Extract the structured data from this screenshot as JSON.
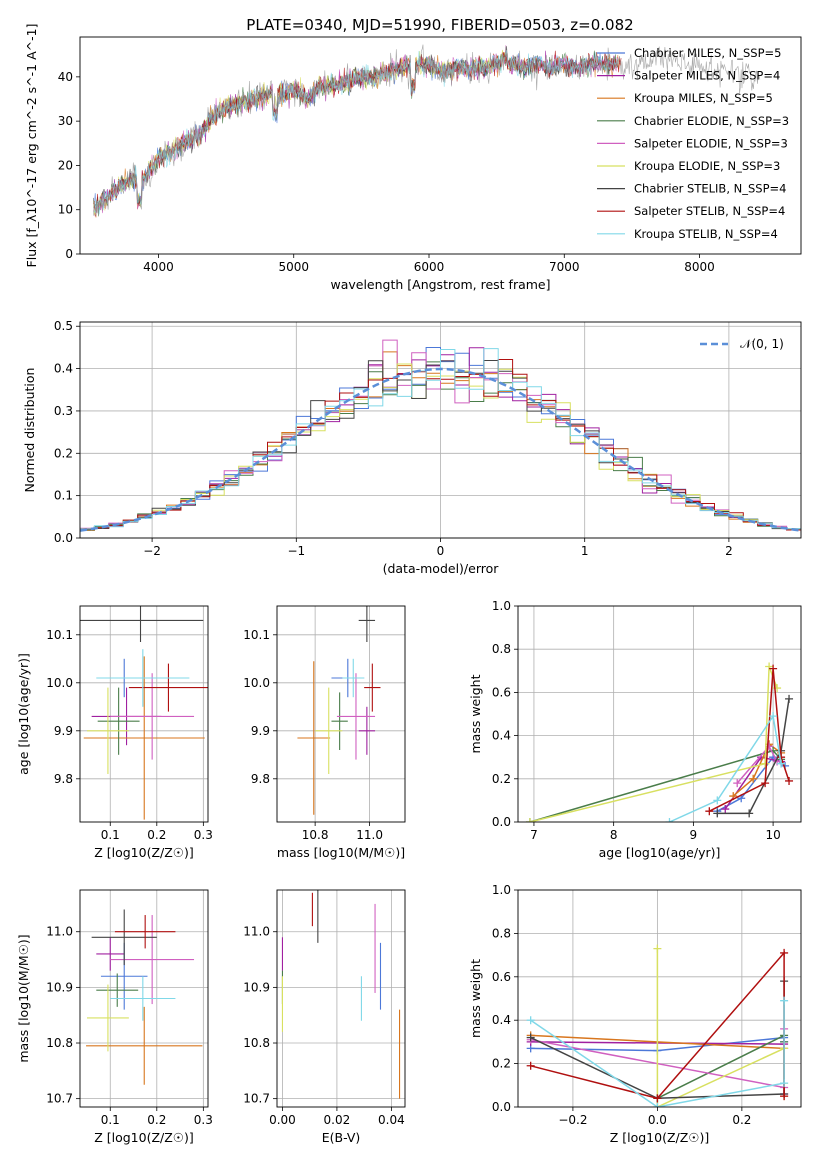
{
  "figure_title": "PLATE=0340, MJD=51990, FIBERID=0503, z=0.082",
  "colors": {
    "chabrier_miles": "#4c78d8",
    "salpeter_miles": "#a020a0",
    "kroupa_miles": "#d8761e",
    "chabrier_elodie": "#4a7d4a",
    "salpeter_elodie": "#d060c0",
    "kroupa_elodie": "#d8e060",
    "chabrier_stelib": "#444444",
    "salpeter_stelib": "#b01010",
    "kroupa_stelib": "#80d8e8",
    "normal_curve": "#5b8fd8",
    "grid": "#b0b0b0"
  },
  "chart_data": [
    {
      "id": "spectrum",
      "type": "line",
      "title": "PLATE=0340, MJD=51990, FIBERID=0503, z=0.082",
      "xlabel": "wavelength [Angstrom, rest frame]",
      "ylabel": "Flux [f_λ10^-17 erg cm^-2 s^-1 A^-1]",
      "xlim": [
        3420,
        8750
      ],
      "ylim": [
        0,
        49
      ],
      "xticks": [
        "4000",
        "5000",
        "6000",
        "7000",
        "8000"
      ],
      "yticks": [
        "0",
        "10",
        "20",
        "30",
        "40"
      ],
      "grid": false,
      "legend_position": "top-right",
      "legend": [
        "Chabrier MILES, N_SSP=5",
        "Salpeter MILES, N_SSP=4",
        "Kroupa MILES, N_SSP=5",
        "Chabrier ELODIE, N_SSP=3",
        "Salpeter ELODIE, N_SSP=3",
        "Kroupa ELODIE, N_SSP=3",
        "Chabrier STELIB, N_SSP=4",
        "Salpeter STELIB, N_SSP=4",
        "Kroupa STELIB, N_SSP=4"
      ],
      "continuum": {
        "x": [
          3500,
          3600,
          3700,
          3800,
          3900,
          4000,
          4100,
          4200,
          4300,
          4400,
          4500,
          4600,
          4700,
          4800,
          4900,
          5000,
          5100,
          5200,
          5300,
          5400,
          5500,
          5600,
          5700,
          5800,
          5900,
          6000,
          6100,
          6200,
          6300,
          6400,
          6500,
          6600,
          6700,
          6800,
          6900,
          7000,
          7100,
          7200,
          7300,
          7400,
          7500,
          7600,
          7700,
          7800,
          7900,
          8000,
          8100,
          8200,
          8300
        ],
        "y": [
          10,
          12,
          15,
          17,
          17,
          22,
          23,
          25,
          27,
          31,
          33,
          34,
          35,
          36,
          36,
          37,
          35,
          38,
          38,
          39,
          40,
          40,
          41,
          42,
          43,
          43,
          41,
          42,
          42,
          42,
          43,
          43,
          42,
          43,
          42,
          43,
          42,
          43,
          43,
          43,
          42,
          43,
          44,
          44,
          43,
          42,
          42,
          42,
          40
        ]
      }
    },
    {
      "id": "residuals",
      "type": "step-histogram",
      "xlabel": "(data-model)/error",
      "ylabel": "Normed distribution",
      "xlim": [
        -2.5,
        2.5
      ],
      "ylim": [
        0,
        0.51
      ],
      "xticks": [
        "−2",
        "−1",
        "0",
        "1",
        "2"
      ],
      "yticks": [
        "0.0",
        "0.1",
        "0.2",
        "0.3",
        "0.4",
        "0.5"
      ],
      "grid": true,
      "legend_position": "top-right",
      "legend": [
        "𝒩(0, 1)"
      ],
      "bin_width": 0.1
    },
    {
      "id": "age_vs_Z",
      "type": "errorbar",
      "xlabel": "Z [log10(Z/Z☉)]",
      "ylabel": "age  [log10(age/yr)]",
      "xlim": [
        0.035,
        0.31
      ],
      "ylim": [
        9.71,
        10.16
      ],
      "xticks": [
        "0.1",
        "0.2",
        "0.3"
      ],
      "yticks": [
        "9.8",
        "9.9",
        "10.0",
        "10.1"
      ],
      "grid": true,
      "points": [
        {
          "x": 0.13,
          "xerr": 0.05,
          "y": 10.01,
          "yerr": 0.04,
          "color": "chabrier_miles"
        },
        {
          "x": 0.135,
          "xerr": 0.075,
          "y": 9.93,
          "yerr": 0.06,
          "color": "salpeter_miles"
        },
        {
          "x": 0.173,
          "xerr": 0.13,
          "y": 9.885,
          "yerr": 0.17,
          "color": "kroupa_miles"
        },
        {
          "x": 0.118,
          "xerr": 0.045,
          "y": 9.92,
          "yerr": 0.07,
          "color": "chabrier_elodie"
        },
        {
          "x": 0.19,
          "xerr": 0.09,
          "y": 9.93,
          "yerr": 0.09,
          "color": "salpeter_elodie"
        },
        {
          "x": 0.095,
          "xerr": 0.045,
          "y": 9.9,
          "yerr": 0.09,
          "color": "kroupa_elodie"
        },
        {
          "x": 0.165,
          "xerr": 0.135,
          "y": 10.13,
          "yerr": 0.045,
          "color": "chabrier_stelib"
        },
        {
          "x": 0.225,
          "xerr": 0.085,
          "y": 9.99,
          "yerr": 0.05,
          "color": "salpeter_stelib"
        },
        {
          "x": 0.17,
          "xerr": 0.1,
          "y": 10.01,
          "yerr": 0.06,
          "color": "kroupa_stelib"
        }
      ]
    },
    {
      "id": "age_vs_mass",
      "type": "errorbar",
      "xlabel": "mass [log10(M/M☉)]",
      "ylabel": "",
      "xlim": [
        10.66,
        11.13
      ],
      "ylim": [
        9.71,
        10.16
      ],
      "xticks": [
        "10.8",
        "11.0"
      ],
      "yticks": [
        "9.8",
        "9.9",
        "10.0",
        "10.1"
      ],
      "grid": true,
      "points": [
        {
          "x": 10.92,
          "xerr": 0.06,
          "y": 10.01,
          "yerr": 0.04,
          "color": "chabrier_miles"
        },
        {
          "x": 10.99,
          "xerr": 0.03,
          "y": 9.9,
          "yerr": 0.05,
          "color": "salpeter_miles"
        },
        {
          "x": 10.795,
          "xerr": 0.06,
          "y": 9.885,
          "yerr": 0.16,
          "color": "kroupa_miles"
        },
        {
          "x": 10.89,
          "xerr": 0.03,
          "y": 9.92,
          "yerr": 0.06,
          "color": "chabrier_elodie"
        },
        {
          "x": 10.95,
          "xerr": 0.07,
          "y": 9.93,
          "yerr": 0.09,
          "color": "salpeter_elodie"
        },
        {
          "x": 10.85,
          "xerr": 0.05,
          "y": 9.9,
          "yerr": 0.09,
          "color": "kroupa_elodie"
        },
        {
          "x": 10.99,
          "xerr": 0.03,
          "y": 10.13,
          "yerr": 0.045,
          "color": "chabrier_stelib"
        },
        {
          "x": 11.01,
          "xerr": 0.03,
          "y": 9.99,
          "yerr": 0.05,
          "color": "salpeter_stelib"
        },
        {
          "x": 10.94,
          "xerr": 0.04,
          "y": 10.01,
          "yerr": 0.04,
          "color": "kroupa_stelib"
        }
      ]
    },
    {
      "id": "weight_vs_age",
      "type": "line",
      "xlabel": "age  [log10(age/yr)]",
      "ylabel": "mass weight",
      "xlim": [
        6.8,
        10.35
      ],
      "ylim": [
        0,
        1
      ],
      "xticks": [
        "7",
        "8",
        "9",
        "10"
      ],
      "yticks": [
        "0.0",
        "0.2",
        "0.4",
        "0.6",
        "0.8",
        "1.0"
      ],
      "grid": true,
      "series": [
        {
          "color": "chabrier_miles",
          "x": [
            9.3,
            9.6,
            10.0,
            10.15
          ],
          "y": [
            0.05,
            0.11,
            0.3,
            0.26
          ]
        },
        {
          "color": "salpeter_miles",
          "x": [
            9.4,
            9.85,
            10.1
          ],
          "y": [
            0.06,
            0.3,
            0.28
          ]
        },
        {
          "color": "kroupa_miles",
          "x": [
            9.5,
            9.75,
            9.95,
            10.1
          ],
          "y": [
            0.12,
            0.2,
            0.36,
            0.32
          ]
        },
        {
          "color": "chabrier_elodie",
          "x": [
            6.95,
            10.0,
            10.1
          ],
          "y": [
            0.0,
            0.33,
            0.29
          ]
        },
        {
          "color": "salpeter_elodie",
          "x": [
            9.55,
            9.95,
            10.05
          ],
          "y": [
            0.18,
            0.35,
            0.28
          ]
        },
        {
          "color": "kroupa_elodie",
          "x": [
            6.95,
            9.9,
            9.95,
            10.05
          ],
          "y": [
            0.0,
            0.27,
            0.72,
            0.62
          ]
        },
        {
          "color": "chabrier_stelib",
          "x": [
            9.3,
            9.7,
            10.1,
            10.2
          ],
          "y": [
            0.04,
            0.04,
            0.33,
            0.57
          ]
        },
        {
          "color": "salpeter_stelib",
          "x": [
            9.2,
            9.9,
            10.0,
            10.1,
            10.2
          ],
          "y": [
            0.05,
            0.18,
            0.71,
            0.3,
            0.19
          ]
        },
        {
          "color": "kroupa_stelib",
          "x": [
            8.7,
            9.3,
            10.0,
            10.1
          ],
          "y": [
            0.0,
            0.1,
            0.49,
            0.27
          ]
        }
      ]
    },
    {
      "id": "mass_vs_Z",
      "type": "errorbar",
      "xlabel": "Z [log10(Z/Z☉)]",
      "ylabel": "mass [log10(M/M☉)]",
      "xlim": [
        0.035,
        0.31
      ],
      "ylim": [
        10.685,
        11.075
      ],
      "xticks": [
        "0.1",
        "0.2",
        "0.3"
      ],
      "yticks": [
        "10.7",
        "10.8",
        "10.9",
        "11.0"
      ],
      "grid": true,
      "points": [
        {
          "x": 0.13,
          "xerr": 0.05,
          "y": 10.92,
          "yerr": 0.06,
          "color": "chabrier_miles"
        },
        {
          "x": 0.1,
          "xerr": 0.03,
          "y": 10.96,
          "yerr": 0.03,
          "color": "salpeter_miles"
        },
        {
          "x": 0.173,
          "xerr": 0.125,
          "y": 10.795,
          "yerr": 0.07,
          "color": "kroupa_miles"
        },
        {
          "x": 0.115,
          "xerr": 0.045,
          "y": 10.895,
          "yerr": 0.03,
          "color": "chabrier_elodie"
        },
        {
          "x": 0.19,
          "xerr": 0.09,
          "y": 10.95,
          "yerr": 0.08,
          "color": "salpeter_elodie"
        },
        {
          "x": 0.095,
          "xerr": 0.045,
          "y": 10.845,
          "yerr": 0.06,
          "color": "kroupa_elodie"
        },
        {
          "x": 0.13,
          "xerr": 0.07,
          "y": 10.99,
          "yerr": 0.05,
          "color": "chabrier_stelib"
        },
        {
          "x": 0.175,
          "xerr": 0.065,
          "y": 11.0,
          "yerr": 0.03,
          "color": "salpeter_stelib"
        },
        {
          "x": 0.17,
          "xerr": 0.07,
          "y": 10.88,
          "yerr": 0.04,
          "color": "kroupa_stelib"
        }
      ]
    },
    {
      "id": "mass_vs_ebv",
      "type": "errorbar",
      "xlabel": "E(B-V)",
      "ylabel": "",
      "xlim": [
        -0.002,
        0.045
      ],
      "ylim": [
        10.685,
        11.075
      ],
      "xticks": [
        "0.00",
        "0.02",
        "0.04"
      ],
      "yticks": [
        "10.7",
        "10.8",
        "10.9",
        "11.0"
      ],
      "grid": true,
      "points": [
        {
          "x": 0.036,
          "xerr": 0,
          "y": 10.92,
          "yerr": 0.06,
          "color": "chabrier_miles"
        },
        {
          "x": 0.0,
          "xerr": 0,
          "y": 10.96,
          "yerr": 0.03,
          "color": "salpeter_miles"
        },
        {
          "x": 0.043,
          "xerr": 0,
          "y": 10.78,
          "yerr": 0.08,
          "color": "kroupa_miles"
        },
        {
          "x": 0.0,
          "xerr": 0,
          "y": 10.9,
          "yerr": 0.03,
          "color": "chabrier_elodie"
        },
        {
          "x": 0.034,
          "xerr": 0,
          "y": 10.97,
          "yerr": 0.08,
          "color": "salpeter_elodie"
        },
        {
          "x": 0.0,
          "xerr": 0,
          "y": 10.87,
          "yerr": 0.05,
          "color": "kroupa_elodie"
        },
        {
          "x": 0.013,
          "xerr": 0,
          "y": 11.03,
          "yerr": 0.05,
          "color": "chabrier_stelib"
        },
        {
          "x": 0.011,
          "xerr": 0,
          "y": 11.04,
          "yerr": 0.03,
          "color": "salpeter_stelib"
        },
        {
          "x": 0.029,
          "xerr": 0,
          "y": 10.88,
          "yerr": 0.04,
          "color": "kroupa_stelib"
        }
      ]
    },
    {
      "id": "weight_vs_Z",
      "type": "line",
      "xlabel": "Z [log10(Z/Z☉)]",
      "ylabel": "mass weight",
      "xlim": [
        -0.33,
        0.34
      ],
      "ylim": [
        0,
        1
      ],
      "xticks": [
        "−0.2",
        "0.0",
        "0.2"
      ],
      "yticks": [
        "0.0",
        "0.2",
        "0.4",
        "0.6",
        "0.8",
        "1.0"
      ],
      "grid": true,
      "series": [
        {
          "color": "chabrier_miles",
          "x": [
            -0.3,
            0.0,
            0.3,
            0.3
          ],
          "y": [
            0.27,
            0.26,
            0.32,
            0.3
          ]
        },
        {
          "color": "salpeter_miles",
          "x": [
            -0.3,
            0.3,
            0.3
          ],
          "y": [
            0.3,
            0.29,
            0.06
          ]
        },
        {
          "color": "kroupa_miles",
          "x": [
            -0.3,
            0.3,
            0.3
          ],
          "y": [
            0.33,
            0.27,
            0.05
          ]
        },
        {
          "color": "chabrier_elodie",
          "x": [
            0.0,
            0.3,
            0.3
          ],
          "y": [
            0.04,
            0.33,
            0.3
          ]
        },
        {
          "color": "salpeter_elodie",
          "x": [
            -0.3,
            0.3,
            0.3
          ],
          "y": [
            0.31,
            0.09,
            0.36
          ]
        },
        {
          "color": "kroupa_elodie",
          "x": [
            0.0,
            0.0,
            0.3,
            0.3
          ],
          "y": [
            0.73,
            0.0,
            0.27,
            0.11
          ]
        },
        {
          "color": "chabrier_stelib",
          "x": [
            -0.3,
            0.0,
            0.3,
            0.3
          ],
          "y": [
            0.32,
            0.04,
            0.06,
            0.58
          ]
        },
        {
          "color": "salpeter_stelib",
          "x": [
            -0.3,
            0.0,
            0.3,
            0.3
          ],
          "y": [
            0.19,
            0.04,
            0.71,
            0.05
          ]
        },
        {
          "color": "kroupa_stelib",
          "x": [
            -0.3,
            0.0,
            0.3,
            0.3
          ],
          "y": [
            0.4,
            0.0,
            0.11,
            0.49
          ]
        }
      ]
    }
  ]
}
